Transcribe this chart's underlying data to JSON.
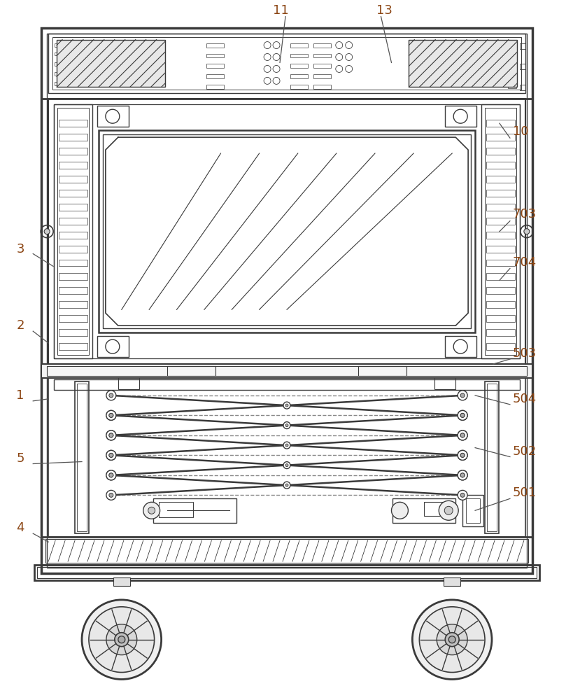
{
  "bg_color": "#ffffff",
  "line_color": "#3a3a3a",
  "label_color": "#8B4513",
  "fig_width": 8.2,
  "fig_height": 10.0
}
